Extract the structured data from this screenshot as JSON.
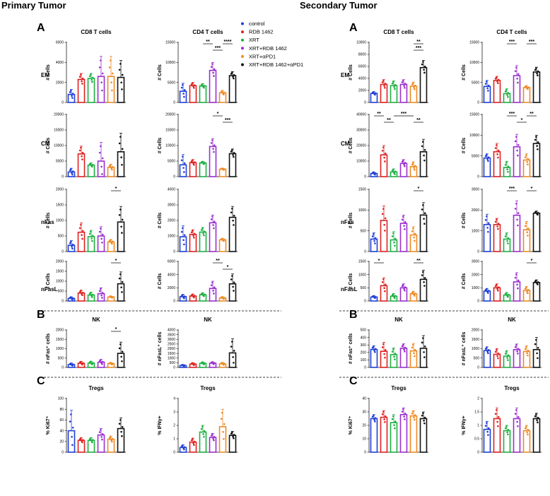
{
  "figure": {
    "titles": [
      "Primary Tumor",
      "Secondary Tumor"
    ],
    "section_letters": [
      "A",
      "B",
      "C",
      "A",
      "B",
      "C"
    ],
    "row_labels": [
      "EM",
      "CM",
      "nFas",
      "nFasL"
    ],
    "legend": [
      {
        "label": "control",
        "color": "#1f3fd6"
      },
      {
        "label": "RDB 1462",
        "color": "#e02020"
      },
      {
        "label": "XRT",
        "color": "#1db040"
      },
      {
        "label": "XRT+RDB 1462",
        "color": "#9a2fd0"
      },
      {
        "label": "XRT+αPD1",
        "color": "#f08a24"
      },
      {
        "label": "XRT+RDB 1462+αPD1",
        "color": "#111111"
      }
    ]
  },
  "chart_data": [
    {
      "type": "bar",
      "side": "primary",
      "title": "CD8 T cells",
      "ylabel": "# Cells",
      "ylim": [
        0,
        6000
      ],
      "yticks": [
        0,
        2000,
        4000,
        6000
      ],
      "values": [
        800,
        2300,
        2400,
        2600,
        2600,
        2500
      ],
      "errors": [
        500,
        600,
        500,
        2000,
        2000,
        1700
      ],
      "significance": []
    },
    {
      "type": "bar",
      "side": "primary",
      "title": "CD4 T cells",
      "ylabel": "# Cells",
      "ylim": [
        0,
        15000
      ],
      "yticks": [
        0,
        5000,
        10000,
        15000
      ],
      "values": [
        2800,
        4200,
        4100,
        8000,
        2400,
        6700
      ],
      "errors": [
        2000,
        800,
        600,
        2000,
        600,
        1000
      ],
      "significance": [
        {
          "from": 2,
          "to": 3,
          "label": "**"
        },
        {
          "from": 3,
          "to": 4,
          "label": "***"
        },
        {
          "from": 4,
          "to": 5,
          "label": "****"
        }
      ]
    },
    {
      "type": "bar",
      "side": "primary",
      "title": "",
      "ylabel": "# Cells",
      "ylim": [
        0,
        20000
      ],
      "yticks": [
        0,
        5000,
        10000,
        15000,
        20000
      ],
      "values": [
        1500,
        7300,
        3700,
        5000,
        3000,
        8000
      ],
      "errors": [
        1200,
        2500,
        700,
        6000,
        1000,
        6000
      ],
      "significance": []
    },
    {
      "type": "bar",
      "side": "primary",
      "title": "",
      "ylabel": "# Cells",
      "ylim": [
        0,
        20000
      ],
      "yticks": [
        0,
        5000,
        10000,
        15000,
        20000
      ],
      "values": [
        3800,
        4500,
        4400,
        9700,
        2400,
        7400
      ],
      "errors": [
        3300,
        1000,
        500,
        2500,
        300,
        1500
      ],
      "significance": [
        {
          "from": 3,
          "to": 4,
          "label": "*"
        },
        {
          "from": 4,
          "to": 5,
          "label": "***"
        }
      ]
    },
    {
      "type": "bar",
      "side": "primary",
      "title": "",
      "ylabel": "# Cells",
      "ylim": [
        0,
        2000
      ],
      "yticks": [
        0,
        500,
        1000,
        1500,
        2000
      ],
      "values": [
        200,
        620,
        480,
        500,
        310,
        950
      ],
      "errors": [
        150,
        300,
        200,
        300,
        80,
        500
      ],
      "significance": [
        {
          "from": 4,
          "to": 5,
          "label": "*"
        }
      ]
    },
    {
      "type": "bar",
      "side": "primary",
      "title": "",
      "ylabel": "# Cells",
      "ylim": [
        0,
        4000
      ],
      "yticks": [
        0,
        1000,
        2000,
        3000,
        4000
      ],
      "values": [
        950,
        1100,
        1250,
        1850,
        750,
        2200
      ],
      "errors": [
        700,
        300,
        300,
        500,
        100,
        700
      ],
      "significance": []
    },
    {
      "type": "bar",
      "side": "primary",
      "title": "",
      "ylabel": "# Cells",
      "ylim": [
        0,
        2000
      ],
      "yticks": [
        0,
        500,
        1000,
        1500,
        2000
      ],
      "values": [
        130,
        400,
        300,
        370,
        200,
        870
      ],
      "errors": [
        80,
        150,
        150,
        300,
        50,
        600
      ],
      "significance": [
        {
          "from": 4,
          "to": 5,
          "label": "*"
        }
      ]
    },
    {
      "type": "bar",
      "side": "primary",
      "title": "",
      "ylabel": "# Cells",
      "ylim": [
        0,
        6000
      ],
      "yticks": [
        0,
        2000,
        4000,
        6000
      ],
      "values": [
        650,
        750,
        950,
        1900,
        450,
        2600
      ],
      "errors": [
        350,
        300,
        300,
        1100,
        200,
        1500
      ],
      "significance": [
        {
          "from": 3,
          "to": 4,
          "label": "**"
        },
        {
          "from": 4,
          "to": 5,
          "label": "*"
        }
      ]
    },
    {
      "type": "bar",
      "side": "primary",
      "title": "NK",
      "ylabel": "# nFas⁺ cells",
      "ylim": [
        0,
        2000
      ],
      "yticks": [
        0,
        500,
        1000,
        1500,
        2000
      ],
      "values": [
        150,
        220,
        230,
        280,
        200,
        750
      ],
      "errors": [
        80,
        100,
        100,
        150,
        60,
        600
      ],
      "significance": [
        {
          "from": 4,
          "to": 5,
          "label": "*"
        }
      ]
    },
    {
      "type": "bar",
      "side": "primary",
      "title": "NK",
      "ylabel": "# nFasL⁺ cells",
      "ylim": [
        0,
        4000
      ],
      "yticks": [
        0,
        500,
        1000,
        1500,
        2000,
        2500,
        3000,
        3500,
        4000
      ],
      "values": [
        200,
        350,
        430,
        450,
        380,
        1550
      ],
      "errors": [
        100,
        150,
        150,
        150,
        150,
        1500
      ],
      "significance": []
    },
    {
      "type": "bar",
      "side": "primary",
      "title": "Tregs",
      "ylabel": "% Ki67⁺",
      "ylim": [
        0,
        100
      ],
      "yticks": [
        0,
        20,
        40,
        60,
        80,
        100
      ],
      "values": [
        40,
        22,
        22,
        32,
        24,
        44
      ],
      "errors": [
        38,
        5,
        5,
        12,
        6,
        20
      ],
      "significance": []
    },
    {
      "type": "bar",
      "side": "primary",
      "title": "Tregs",
      "ylabel": "% IFNγ+",
      "ylim": [
        0,
        4
      ],
      "yticks": [
        0,
        1,
        2,
        3,
        4
      ],
      "values": [
        0.35,
        0.75,
        1.5,
        1.1,
        1.9,
        1.25
      ],
      "errors": [
        0.2,
        0.3,
        0.5,
        0.3,
        1.3,
        0.3
      ],
      "significance": []
    },
    {
      "type": "bar",
      "side": "secondary",
      "title": "CD8 T cells",
      "ylabel": "# Cells",
      "ylim": [
        0,
        10000
      ],
      "yticks": [
        0,
        2000,
        4000,
        6000,
        8000,
        10000
      ],
      "values": [
        1500,
        3000,
        2800,
        3000,
        2700,
        5800
      ],
      "errors": [
        300,
        800,
        800,
        800,
        700,
        1200
      ],
      "significance": [
        {
          "from": 4,
          "to": 5,
          "label": "**"
        },
        {
          "from": 4,
          "to": 5,
          "label": "***"
        }
      ]
    },
    {
      "type": "bar",
      "side": "secondary",
      "title": "CD4 T cells",
      "ylabel": "# Cells",
      "ylim": [
        0,
        15000
      ],
      "yticks": [
        0,
        5000,
        10000,
        15000
      ],
      "values": [
        4000,
        5500,
        2200,
        6700,
        3700,
        7600
      ],
      "errors": [
        1500,
        1000,
        1200,
        2500,
        500,
        1200
      ],
      "significance": [
        {
          "from": 2,
          "to": 3,
          "label": "***"
        },
        {
          "from": 4,
          "to": 5,
          "label": "***"
        }
      ]
    },
    {
      "type": "bar",
      "side": "secondary",
      "title": "",
      "ylabel": "# Cells",
      "ylim": [
        0,
        40000
      ],
      "yticks": [
        0,
        10000,
        20000,
        30000,
        40000
      ],
      "values": [
        2000,
        14000,
        3000,
        8500,
        6500,
        16000
      ],
      "errors": [
        1000,
        6000,
        2000,
        2500,
        3000,
        8000
      ],
      "significance": [
        {
          "from": 0,
          "to": 1,
          "label": "**"
        },
        {
          "from": 1,
          "to": 2,
          "label": "**"
        },
        {
          "from": 2,
          "to": 4,
          "label": "***"
        },
        {
          "from": 4,
          "to": 5,
          "label": "**"
        }
      ]
    },
    {
      "type": "bar",
      "side": "secondary",
      "title": "",
      "ylabel": "# Cells",
      "ylim": [
        0,
        15000
      ],
      "yticks": [
        0,
        5000,
        10000,
        15000
      ],
      "values": [
        4500,
        6000,
        2200,
        7200,
        4000,
        8000
      ],
      "errors": [
        1000,
        2000,
        1500,
        3000,
        1500,
        2000
      ],
      "significance": [
        {
          "from": 2,
          "to": 3,
          "label": "***"
        },
        {
          "from": 3,
          "to": 4,
          "label": "*"
        },
        {
          "from": 4,
          "to": 5,
          "label": "**"
        }
      ]
    },
    {
      "type": "bar",
      "side": "secondary",
      "title": "",
      "ylabel": "# Cells",
      "ylim": [
        0,
        1500
      ],
      "yticks": [
        0,
        500,
        1000,
        1500
      ],
      "values": [
        300,
        750,
        280,
        680,
        400,
        880
      ],
      "errors": [
        150,
        350,
        200,
        200,
        200,
        300
      ],
      "significance": [
        {
          "from": 4,
          "to": 5,
          "label": "*"
        }
      ]
    },
    {
      "type": "bar",
      "side": "secondary",
      "title": "",
      "ylabel": "# Cells",
      "ylim": [
        0,
        3000
      ],
      "yticks": [
        0,
        1000,
        2000,
        3000
      ],
      "values": [
        1300,
        1300,
        600,
        1750,
        1050,
        1850
      ],
      "errors": [
        500,
        300,
        300,
        700,
        400,
        100
      ],
      "significance": [
        {
          "from": 2,
          "to": 3,
          "label": "***"
        },
        {
          "from": 4,
          "to": 5,
          "label": "*"
        }
      ]
    },
    {
      "type": "bar",
      "side": "secondary",
      "title": "",
      "ylabel": "# Cells",
      "ylim": [
        0,
        1500
      ],
      "yticks": [
        0,
        500,
        1000,
        1500
      ],
      "values": [
        150,
        580,
        180,
        500,
        270,
        820
      ],
      "errors": [
        50,
        300,
        100,
        150,
        100,
        350
      ],
      "significance": [
        {
          "from": 0,
          "to": 1,
          "label": "*"
        },
        {
          "from": 4,
          "to": 5,
          "label": "**"
        }
      ]
    },
    {
      "type": "bar",
      "side": "secondary",
      "title": "",
      "ylabel": "# Cells",
      "ylim": [
        0,
        3000
      ],
      "yticks": [
        0,
        1000,
        2000,
        3000
      ],
      "values": [
        750,
        1000,
        450,
        1450,
        800,
        1400
      ],
      "errors": [
        200,
        300,
        200,
        700,
        300,
        200
      ],
      "significance": [
        {
          "from": 4,
          "to": 5,
          "label": "*"
        }
      ]
    },
    {
      "type": "bar",
      "side": "secondary",
      "title": "NK",
      "ylabel": "# nFas⁺ cells",
      "ylim": [
        0,
        500
      ],
      "yticks": [
        0,
        100,
        200,
        300,
        400,
        500
      ],
      "values": [
        240,
        215,
        170,
        255,
        220,
        255
      ],
      "errors": [
        50,
        120,
        90,
        60,
        100,
        170
      ],
      "significance": []
    },
    {
      "type": "bar",
      "side": "secondary",
      "title": "NK",
      "ylabel": "# nFasL⁺ cells",
      "ylim": [
        0,
        2000
      ],
      "yticks": [
        0,
        500,
        1000,
        1500,
        2000
      ],
      "values": [
        900,
        700,
        600,
        950,
        850,
        950
      ],
      "errors": [
        200,
        300,
        300,
        300,
        300,
        650
      ],
      "significance": []
    },
    {
      "type": "bar",
      "side": "secondary",
      "title": "Tregs",
      "ylabel": "% Ki67⁺",
      "ylim": [
        0,
        40
      ],
      "yticks": [
        0,
        10,
        20,
        30,
        40
      ],
      "values": [
        25,
        26,
        22,
        28,
        27,
        25
      ],
      "errors": [
        3,
        5,
        6,
        5,
        4,
        5
      ],
      "significance": []
    },
    {
      "type": "bar",
      "side": "secondary",
      "title": "Tregs",
      "ylabel": "% IFNγ+",
      "ylim": [
        0,
        2
      ],
      "yticks": [
        0,
        0.5,
        1,
        1.5,
        2
      ],
      "values": [
        0.85,
        1.25,
        0.8,
        1.25,
        0.8,
        1.25
      ],
      "errors": [
        0.3,
        0.4,
        0.2,
        0.4,
        0.2,
        0.2
      ],
      "significance": []
    }
  ]
}
